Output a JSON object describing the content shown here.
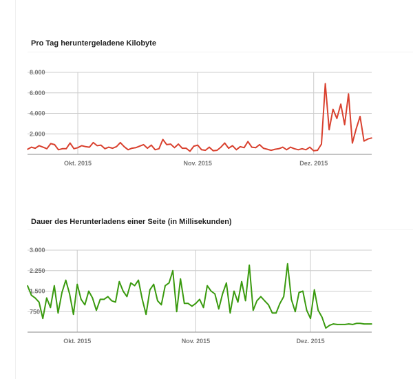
{
  "chart_data": [
    {
      "type": "line",
      "title": "Pro Tag heruntergeladene Kilobyte",
      "color": "#d9412f",
      "ylim": [
        0,
        8000
      ],
      "yticks": [
        "2.000",
        "4.000",
        "6.000",
        "8.000"
      ],
      "ytick_values": [
        2000,
        4000,
        6000,
        8000
      ],
      "xticks": [
        "Okt. 2015",
        "Nov. 2015",
        "Dez. 2015"
      ],
      "xtick_days": [
        13,
        44,
        74
      ],
      "values": [
        500,
        700,
        600,
        850,
        700,
        550,
        1050,
        950,
        450,
        550,
        550,
        1100,
        550,
        650,
        850,
        750,
        700,
        1150,
        850,
        900,
        550,
        700,
        600,
        750,
        1150,
        750,
        450,
        600,
        650,
        800,
        950,
        600,
        900,
        450,
        550,
        1450,
        950,
        1000,
        650,
        1000,
        600,
        600,
        300,
        800,
        900,
        450,
        400,
        700,
        350,
        400,
        700,
        1100,
        600,
        850,
        450,
        750,
        650,
        1250,
        700,
        650,
        950,
        600,
        500,
        400,
        500,
        550,
        700,
        450,
        700,
        550,
        450,
        550,
        450,
        700,
        350,
        400,
        1000,
        6900,
        2400,
        4400,
        3500,
        4900,
        2900,
        5900,
        1100,
        2500,
        3700,
        1300,
        1500,
        1600
      ]
    },
    {
      "type": "line",
      "title": "Dauer des Herunterladens einer Seite (in Millisekunden)",
      "color": "#3a9a0f",
      "ylim": [
        0,
        3000
      ],
      "yticks": [
        "750",
        "1.500",
        "2.250",
        "3.000"
      ],
      "ytick_values": [
        750,
        1500,
        2250,
        3000
      ],
      "xticks": [
        "Okt. 2015",
        "Nov. 2015",
        "Dez. 2015"
      ],
      "xtick_days": [
        13,
        44,
        74
      ],
      "values": [
        1700,
        1350,
        1250,
        1100,
        500,
        1250,
        900,
        1700,
        700,
        1450,
        1900,
        1400,
        650,
        1750,
        1200,
        1000,
        1500,
        1250,
        800,
        1200,
        1200,
        1300,
        1150,
        1100,
        1850,
        1500,
        1300,
        1800,
        1700,
        1900,
        1200,
        650,
        1550,
        1750,
        1150,
        1000,
        1700,
        1800,
        2250,
        750,
        1950,
        1050,
        1050,
        950,
        1050,
        1200,
        900,
        1700,
        1500,
        1400,
        850,
        1400,
        1800,
        700,
        1500,
        1100,
        1850,
        1150,
        2450,
        800,
        1150,
        1300,
        1150,
        1000,
        700,
        700,
        1050,
        1300,
        2500,
        1200,
        750,
        1450,
        1500,
        800,
        500,
        1550,
        800,
        550,
        150,
        250,
        300,
        280,
        280,
        280,
        300,
        280,
        320,
        320,
        300,
        300,
        300
      ]
    }
  ]
}
